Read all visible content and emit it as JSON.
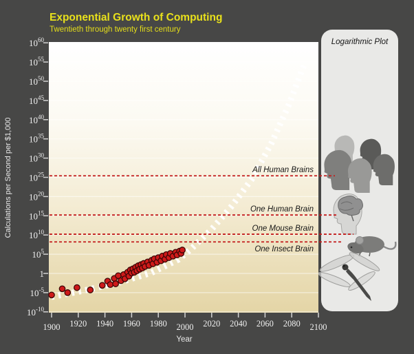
{
  "title": "Exponential Growth of Computing",
  "subtitle": "Twentieth through twenty first century",
  "panel": {
    "title": "Logarithmic Plot",
    "images": [
      "human-heads-image",
      "human-brain-image",
      "mouse-image",
      "dragonfly-image"
    ]
  },
  "chart_data": {
    "type": "scatter",
    "title": "Exponential Growth of Computing",
    "subtitle": "Twentieth through twenty first century",
    "xlabel": "Year",
    "ylabel": "Calculations per Second per $1,000",
    "x_ticks": [
      1900,
      1920,
      1940,
      1960,
      1980,
      2000,
      2020,
      2040,
      2060,
      2080,
      2100
    ],
    "y_ticks_pow10": [
      60,
      55,
      50,
      45,
      40,
      35,
      30,
      25,
      20,
      15,
      10,
      5,
      0,
      -5,
      -10
    ],
    "xlim": [
      1898,
      2102
    ],
    "ylim_log10": [
      -11,
      61
    ],
    "grid": true,
    "legend_position": "right-panel",
    "thresholds": [
      {
        "label": "All Human Brains",
        "log10_cps": 25.4,
        "label_position": "above"
      },
      {
        "label": "One Human Brain",
        "log10_cps": 15.2,
        "label_position": "above"
      },
      {
        "label": "One Mouse Brain",
        "log10_cps": 10.2,
        "label_position": "above"
      },
      {
        "label": "One Insect Brain",
        "log10_cps": 8.2,
        "label_position": "below"
      }
    ],
    "points_year_log10cps": [
      [
        1900,
        -5.6
      ],
      [
        1908,
        -4.0
      ],
      [
        1912,
        -5.0
      ],
      [
        1919,
        -3.7
      ],
      [
        1929,
        -4.3
      ],
      [
        1938,
        -3.1
      ],
      [
        1942,
        -2.0
      ],
      [
        1944,
        -2.9
      ],
      [
        1947,
        -1.3
      ],
      [
        1948,
        -2.7
      ],
      [
        1950,
        -0.6
      ],
      [
        1952,
        -1.9
      ],
      [
        1954,
        -0.3
      ],
      [
        1955,
        -1.4
      ],
      [
        1957,
        0.3
      ],
      [
        1958,
        -0.7
      ],
      [
        1959,
        0.9
      ],
      [
        1960,
        0.1
      ],
      [
        1961,
        1.2
      ],
      [
        1962,
        0.3
      ],
      [
        1963,
        1.6
      ],
      [
        1964,
        0.7
      ],
      [
        1965,
        2.0
      ],
      [
        1966,
        1.1
      ],
      [
        1967,
        2.3
      ],
      [
        1968,
        1.4
      ],
      [
        1969,
        2.6
      ],
      [
        1970,
        1.8
      ],
      [
        1972,
        3.0
      ],
      [
        1973,
        2.1
      ],
      [
        1975,
        3.4
      ],
      [
        1976,
        2.5
      ],
      [
        1977,
        3.8
      ],
      [
        1979,
        2.9
      ],
      [
        1980,
        4.1
      ],
      [
        1982,
        3.3
      ],
      [
        1983,
        4.5
      ],
      [
        1985,
        3.7
      ],
      [
        1986,
        4.9
      ],
      [
        1988,
        4.1
      ],
      [
        1989,
        5.2
      ],
      [
        1991,
        4.5
      ],
      [
        1993,
        5.5
      ],
      [
        1994,
        4.8
      ],
      [
        1996,
        5.8
      ],
      [
        1997,
        5.2
      ],
      [
        1998,
        6.1
      ]
    ],
    "trend_year_log10cps": [
      [
        1900,
        -6.1
      ],
      [
        1925,
        -4.4
      ],
      [
        1950,
        -2.4
      ],
      [
        1975,
        0.2
      ],
      [
        1995,
        3.6
      ],
      [
        2005,
        6.5
      ],
      [
        2020,
        11.5
      ],
      [
        2035,
        17.5
      ],
      [
        2050,
        24.5
      ],
      [
        2065,
        34.0
      ],
      [
        2078,
        44.0
      ],
      [
        2090,
        55.0
      ]
    ],
    "colors": {
      "background": "#474746",
      "title_yellow": "#e9e11b",
      "plot_top": "#ffffff",
      "plot_bottom": "#e4d5a6",
      "dot_fill": "#ce1a1a",
      "dot_stroke": "#3c0606",
      "threshold_red": "#c31c1c",
      "trend_white": "#ffffff",
      "panel_bg": "#e9e9e7",
      "axis_text": "#e9e9e9",
      "label_dark": "#161616"
    }
  }
}
